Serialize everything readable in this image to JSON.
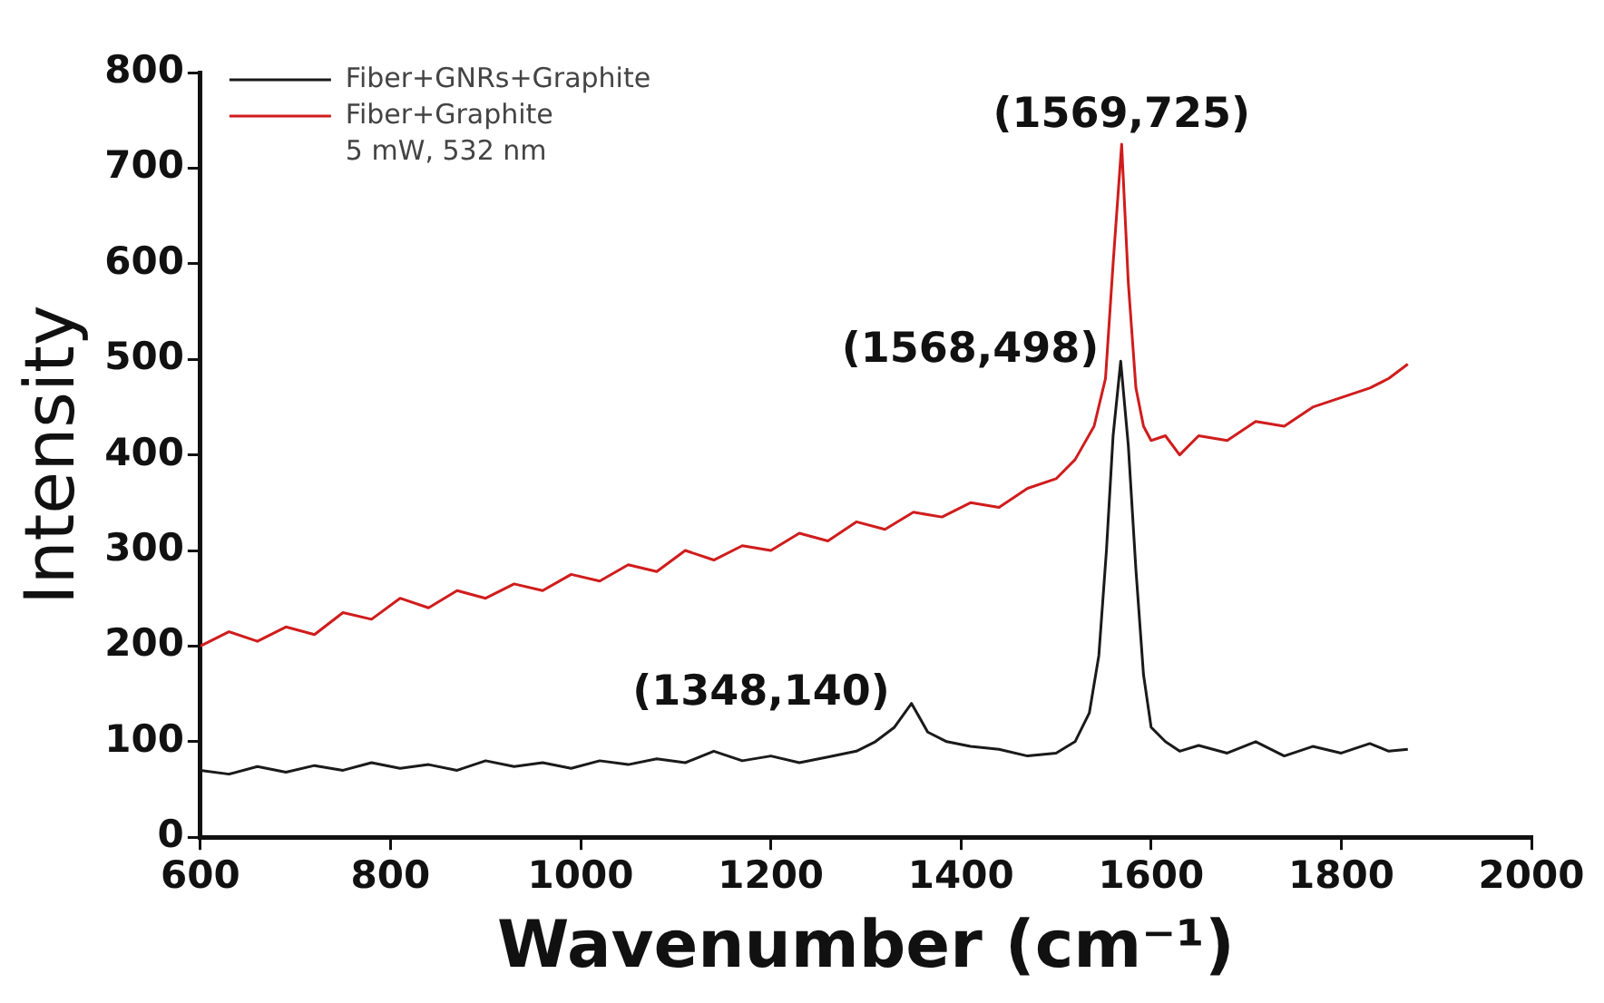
{
  "chart_data": {
    "type": "line",
    "xlabel": "Wavenumber (cm⁻¹)",
    "ylabel": "Intensity",
    "xlim": [
      600,
      2000
    ],
    "xticks": [
      600,
      800,
      1000,
      1200,
      1400,
      1600,
      1800,
      2000
    ],
    "ylim": [
      0,
      800
    ],
    "yticks": [
      0,
      100,
      200,
      300,
      400,
      500,
      600,
      700,
      800
    ],
    "grid": false,
    "legend": "top left",
    "marker": "none",
    "line_style": "solid",
    "series": [
      {
        "name": "Fiber+GNRs+Graphite",
        "color": "#1a1a1a",
        "x": [
          600,
          630,
          660,
          690,
          720,
          750,
          780,
          810,
          840,
          870,
          900,
          930,
          960,
          990,
          1020,
          1050,
          1080,
          1110,
          1140,
          1170,
          1200,
          1230,
          1260,
          1290,
          1310,
          1330,
          1348,
          1365,
          1385,
          1410,
          1440,
          1470,
          1500,
          1520,
          1535,
          1545,
          1553,
          1560,
          1568,
          1576,
          1584,
          1592,
          1600,
          1615,
          1630,
          1650,
          1680,
          1710,
          1740,
          1770,
          1800,
          1830,
          1850,
          1870
        ],
        "values": [
          70,
          66,
          74,
          68,
          75,
          70,
          78,
          72,
          76,
          70,
          80,
          74,
          78,
          72,
          80,
          76,
          82,
          78,
          90,
          80,
          85,
          78,
          84,
          90,
          100,
          115,
          140,
          110,
          100,
          95,
          92,
          85,
          88,
          100,
          130,
          190,
          300,
          420,
          498,
          410,
          280,
          170,
          115,
          100,
          90,
          96,
          88,
          100,
          85,
          95,
          88,
          98,
          90,
          92
        ]
      },
      {
        "name": "Fiber+Graphite",
        "color": "#d01c1c",
        "x": [
          600,
          630,
          660,
          690,
          720,
          750,
          780,
          810,
          840,
          870,
          900,
          930,
          960,
          990,
          1020,
          1050,
          1080,
          1110,
          1140,
          1170,
          1200,
          1230,
          1260,
          1290,
          1320,
          1350,
          1380,
          1410,
          1440,
          1470,
          1500,
          1520,
          1540,
          1552,
          1560,
          1569,
          1576,
          1584,
          1592,
          1600,
          1615,
          1630,
          1650,
          1680,
          1710,
          1740,
          1770,
          1800,
          1830,
          1850,
          1870
        ],
        "values": [
          200,
          215,
          205,
          220,
          212,
          235,
          228,
          250,
          240,
          258,
          250,
          265,
          258,
          275,
          268,
          285,
          278,
          300,
          290,
          305,
          300,
          318,
          310,
          330,
          322,
          340,
          335,
          350,
          345,
          365,
          375,
          395,
          430,
          480,
          600,
          725,
          580,
          470,
          430,
          415,
          420,
          400,
          420,
          415,
          435,
          430,
          450,
          460,
          470,
          480,
          495
        ]
      }
    ],
    "annotations": [
      {
        "text": "(1569,725)",
        "x": 1569,
        "y": 725
      },
      {
        "text": "(1568,498)",
        "x": 1568,
        "y": 498
      },
      {
        "text": "(1348,140)",
        "x": 1348,
        "y": 140
      },
      "5 mW, 532 nm"
    ]
  }
}
